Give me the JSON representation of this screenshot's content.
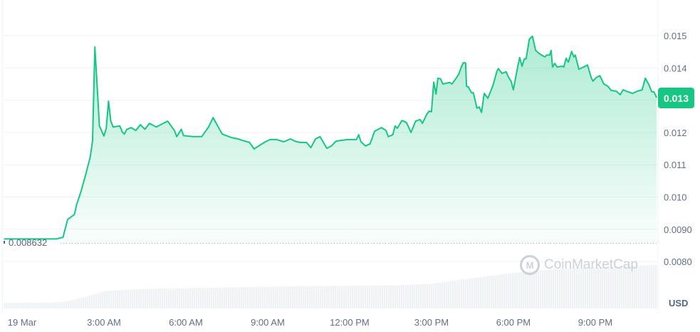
{
  "chart_data": {
    "type": "area",
    "currency_label": "USD",
    "current_price_label": "0.013",
    "reference_line": {
      "value": 0.008632,
      "label": "0.008632"
    },
    "watermark": "CoinMarketCap",
    "colors": {
      "line": "#16c784",
      "fill": "#16c784",
      "volume": "#eff2f5",
      "grid": "#eff2f5",
      "axis_text": "#616e85"
    },
    "y_ticks": [
      {
        "value": 0.015,
        "label": "0.015"
      },
      {
        "value": 0.014,
        "label": "0.014"
      },
      {
        "value": 0.013,
        "label": "0.013"
      },
      {
        "value": 0.012,
        "label": "0.012"
      },
      {
        "value": 0.011,
        "label": "0.011"
      },
      {
        "value": 0.01,
        "label": "0.010"
      },
      {
        "value": 0.009,
        "label": "0.0090"
      },
      {
        "value": 0.008,
        "label": "0.0080"
      }
    ],
    "x_ticks": [
      {
        "time": "19 Mar 00:00",
        "label": "19 Mar"
      },
      {
        "time": "19 Mar 03:00",
        "label": "3:00 AM"
      },
      {
        "time": "19 Mar 06:00",
        "label": "6:00 AM"
      },
      {
        "time": "19 Mar 09:00",
        "label": "9:00 AM"
      },
      {
        "time": "19 Mar 12:00",
        "label": "12:00 PM"
      },
      {
        "time": "19 Mar 15:00",
        "label": "3:00 PM"
      },
      {
        "time": "19 Mar 18:00",
        "label": "6:00 PM"
      },
      {
        "time": "19 Mar 21:00",
        "label": "9:00 PM"
      }
    ],
    "grid": true,
    "price": [
      [
        "18 Mar 23:20",
        0.0087
      ],
      [
        "19 Mar 01:15",
        0.0087
      ],
      [
        "19 Mar 01:30",
        0.00875
      ],
      [
        "19 Mar 01:40",
        0.0093
      ],
      [
        "19 Mar 01:55",
        0.00946
      ],
      [
        "19 Mar 02:00",
        0.00977
      ],
      [
        "19 Mar 02:10",
        0.01019
      ],
      [
        "19 Mar 02:20",
        0.0107
      ],
      [
        "19 Mar 02:30",
        0.01125
      ],
      [
        "19 Mar 02:35",
        0.01175
      ],
      [
        "19 Mar 02:40",
        0.01465
      ],
      [
        "19 Mar 02:45",
        0.01345
      ],
      [
        "19 Mar 02:50",
        0.0122
      ],
      [
        "19 Mar 03:00",
        0.01189
      ],
      [
        "19 Mar 03:05",
        0.01213
      ],
      [
        "19 Mar 03:10",
        0.01297
      ],
      [
        "19 Mar 03:15",
        0.01235
      ],
      [
        "19 Mar 03:20",
        0.01217
      ],
      [
        "19 Mar 03:35",
        0.0122
      ],
      [
        "19 Mar 03:40",
        0.01202
      ],
      [
        "19 Mar 03:45",
        0.01195
      ],
      [
        "19 Mar 03:50",
        0.01209
      ],
      [
        "19 Mar 04:00",
        0.01215
      ],
      [
        "19 Mar 04:10",
        0.01206
      ],
      [
        "19 Mar 04:20",
        0.01224
      ],
      [
        "19 Mar 04:30",
        0.0121
      ],
      [
        "19 Mar 04:40",
        0.01228
      ],
      [
        "19 Mar 04:55",
        0.01217
      ],
      [
        "19 Mar 05:10",
        0.01228
      ],
      [
        "19 Mar 05:20",
        0.01235
      ],
      [
        "19 Mar 05:35",
        0.01206
      ],
      [
        "19 Mar 05:40",
        0.01187
      ],
      [
        "19 Mar 05:50",
        0.0121
      ],
      [
        "19 Mar 05:55",
        0.0119
      ],
      [
        "19 Mar 06:15",
        0.01187
      ],
      [
        "19 Mar 06:35",
        0.01187
      ],
      [
        "19 Mar 06:50",
        0.01217
      ],
      [
        "19 Mar 07:00",
        0.01246
      ],
      [
        "19 Mar 07:10",
        0.0122
      ],
      [
        "19 Mar 07:20",
        0.01195
      ],
      [
        "19 Mar 07:40",
        0.01184
      ],
      [
        "19 Mar 07:55",
        0.0118
      ],
      [
        "19 Mar 08:05",
        0.01175
      ],
      [
        "19 Mar 08:20",
        0.01169
      ],
      [
        "19 Mar 08:30",
        0.01149
      ],
      [
        "19 Mar 08:40",
        0.01158
      ],
      [
        "19 Mar 08:55",
        0.01171
      ],
      [
        "19 Mar 09:05",
        0.01178
      ],
      [
        "19 Mar 09:20",
        0.01178
      ],
      [
        "19 Mar 09:35",
        0.01171
      ],
      [
        "19 Mar 09:50",
        0.0118
      ],
      [
        "19 Mar 10:00",
        0.01173
      ],
      [
        "19 Mar 10:10",
        0.01169
      ],
      [
        "19 Mar 10:25",
        0.01169
      ],
      [
        "19 Mar 10:35",
        0.01153
      ],
      [
        "19 Mar 10:45",
        0.0118
      ],
      [
        "19 Mar 10:55",
        0.01187
      ],
      [
        "19 Mar 11:10",
        0.01151
      ],
      [
        "19 Mar 11:20",
        0.01158
      ],
      [
        "19 Mar 11:30",
        0.01173
      ],
      [
        "19 Mar 11:45",
        0.01176
      ],
      [
        "19 Mar 11:55",
        0.01178
      ],
      [
        "19 Mar 12:05",
        0.01178
      ],
      [
        "19 Mar 12:15",
        0.01178
      ],
      [
        "19 Mar 12:20",
        0.01193
      ],
      [
        "19 Mar 12:25",
        0.01171
      ],
      [
        "19 Mar 12:35",
        0.01158
      ],
      [
        "19 Mar 12:45",
        0.01165
      ],
      [
        "19 Mar 12:55",
        0.01204
      ],
      [
        "19 Mar 13:10",
        0.01215
      ],
      [
        "19 Mar 13:20",
        0.01206
      ],
      [
        "19 Mar 13:25",
        0.01187
      ],
      [
        "19 Mar 13:35",
        0.01193
      ],
      [
        "19 Mar 13:40",
        0.0122
      ],
      [
        "19 Mar 13:45",
        0.01213
      ],
      [
        "19 Mar 13:55",
        0.01237
      ],
      [
        "19 Mar 14:05",
        0.01231
      ],
      [
        "19 Mar 14:15",
        0.012
      ],
      [
        "19 Mar 14:25",
        0.01235
      ],
      [
        "19 Mar 14:35",
        0.0124
      ],
      [
        "19 Mar 14:40",
        0.01228
      ],
      [
        "19 Mar 14:50",
        0.01257
      ],
      [
        "19 Mar 14:55",
        0.01266
      ],
      [
        "19 Mar 15:00",
        0.01264
      ],
      [
        "19 Mar 15:05",
        0.01356
      ],
      [
        "19 Mar 15:10",
        0.01319
      ],
      [
        "19 Mar 15:14",
        0.01368
      ],
      [
        "19 Mar 15:20",
        0.01366
      ],
      [
        "19 Mar 15:25",
        0.0135
      ],
      [
        "19 Mar 15:40",
        0.01355
      ],
      [
        "19 Mar 15:45",
        0.0135
      ],
      [
        "19 Mar 15:55",
        0.0137
      ],
      [
        "19 Mar 16:00",
        0.01381
      ],
      [
        "19 Mar 16:05",
        0.01401
      ],
      [
        "19 Mar 16:10",
        0.01416
      ],
      [
        "19 Mar 16:15",
        0.01416
      ],
      [
        "19 Mar 16:17",
        0.01343
      ],
      [
        "19 Mar 16:21",
        0.01341
      ],
      [
        "19 Mar 16:28",
        0.01323
      ],
      [
        "19 Mar 16:32",
        0.01323
      ],
      [
        "19 Mar 16:40",
        0.01275
      ],
      [
        "19 Mar 16:45",
        0.01279
      ],
      [
        "19 Mar 16:50",
        0.01262
      ],
      [
        "19 Mar 16:56",
        0.01321
      ],
      [
        "19 Mar 17:04",
        0.01306
      ],
      [
        "19 Mar 17:15",
        0.01345
      ],
      [
        "19 Mar 17:24",
        0.0139
      ],
      [
        "19 Mar 17:27",
        0.01398
      ],
      [
        "19 Mar 17:35",
        0.01383
      ],
      [
        "19 Mar 17:44",
        0.01388
      ],
      [
        "19 Mar 17:49",
        0.01372
      ],
      [
        "19 Mar 17:55",
        0.01359
      ],
      [
        "19 Mar 18:00",
        0.01332
      ],
      [
        "19 Mar 18:10",
        0.01407
      ],
      [
        "19 Mar 18:14",
        0.01432
      ],
      [
        "19 Mar 18:19",
        0.01405
      ],
      [
        "19 Mar 18:24",
        0.01428
      ],
      [
        "19 Mar 18:28",
        0.01428
      ],
      [
        "19 Mar 18:35",
        0.01489
      ],
      [
        "19 Mar 18:42",
        0.01498
      ],
      [
        "19 Mar 18:49",
        0.01454
      ],
      [
        "19 Mar 18:58",
        0.01443
      ],
      [
        "19 Mar 19:09",
        0.01434
      ],
      [
        "19 Mar 19:14",
        0.0144
      ],
      [
        "19 Mar 19:20",
        0.0144
      ],
      [
        "19 Mar 19:23",
        0.01454
      ],
      [
        "19 Mar 19:26",
        0.01403
      ],
      [
        "19 Mar 19:31",
        0.01414
      ],
      [
        "19 Mar 19:36",
        0.01403
      ],
      [
        "19 Mar 19:48",
        0.01405
      ],
      [
        "19 Mar 19:51",
        0.01403
      ],
      [
        "19 Mar 19:56",
        0.0143
      ],
      [
        "19 Mar 20:01",
        0.01418
      ],
      [
        "19 Mar 20:08",
        0.01451
      ],
      [
        "19 Mar 20:13",
        0.01434
      ],
      [
        "19 Mar 20:16",
        0.0144
      ],
      [
        "19 Mar 20:24",
        0.01396
      ],
      [
        "19 Mar 20:35",
        0.01403
      ],
      [
        "19 Mar 20:43",
        0.01409
      ],
      [
        "19 Mar 20:51",
        0.0137
      ],
      [
        "19 Mar 20:55",
        0.01359
      ],
      [
        "19 Mar 21:02",
        0.0137
      ],
      [
        "19 Mar 21:10",
        0.01376
      ],
      [
        "19 Mar 21:19",
        0.0135
      ],
      [
        "19 Mar 21:28",
        0.01343
      ],
      [
        "19 Mar 21:35",
        0.0133
      ],
      [
        "19 Mar 21:46",
        0.01328
      ],
      [
        "19 Mar 21:55",
        0.01317
      ],
      [
        "19 Mar 22:01",
        0.01332
      ],
      [
        "19 Mar 22:12",
        0.01326
      ],
      [
        "19 Mar 22:22",
        0.01321
      ],
      [
        "19 Mar 22:33",
        0.01328
      ],
      [
        "19 Mar 22:43",
        0.01332
      ],
      [
        "19 Mar 22:50",
        0.01368
      ],
      [
        "19 Mar 22:58",
        0.01348
      ],
      [
        "19 Mar 23:04",
        0.01326
      ],
      [
        "19 Mar 23:09",
        0.01326
      ],
      [
        "19 Mar 23:15",
        0.01308
      ]
    ],
    "volume_relative": [
      [
        "18 Mar 23:20",
        13
      ],
      [
        "19 Mar 01:00",
        13
      ],
      [
        "19 Mar 01:30",
        15
      ],
      [
        "19 Mar 02:00",
        22
      ],
      [
        "19 Mar 02:30",
        30
      ],
      [
        "19 Mar 03:00",
        40
      ],
      [
        "19 Mar 04:00",
        44
      ],
      [
        "19 Mar 05:00",
        46
      ],
      [
        "19 Mar 06:00",
        47
      ],
      [
        "19 Mar 08:00",
        49
      ],
      [
        "19 Mar 10:00",
        51
      ],
      [
        "19 Mar 12:00",
        52
      ],
      [
        "19 Mar 14:00",
        54
      ],
      [
        "19 Mar 15:00",
        57
      ],
      [
        "19 Mar 16:00",
        66
      ],
      [
        "19 Mar 17:00",
        74
      ],
      [
        "19 Mar 18:00",
        82
      ],
      [
        "19 Mar 19:00",
        88
      ],
      [
        "19 Mar 20:00",
        92
      ],
      [
        "19 Mar 21:00",
        95
      ],
      [
        "19 Mar 22:00",
        98
      ],
      [
        "19 Mar 23:15",
        100
      ]
    ]
  }
}
